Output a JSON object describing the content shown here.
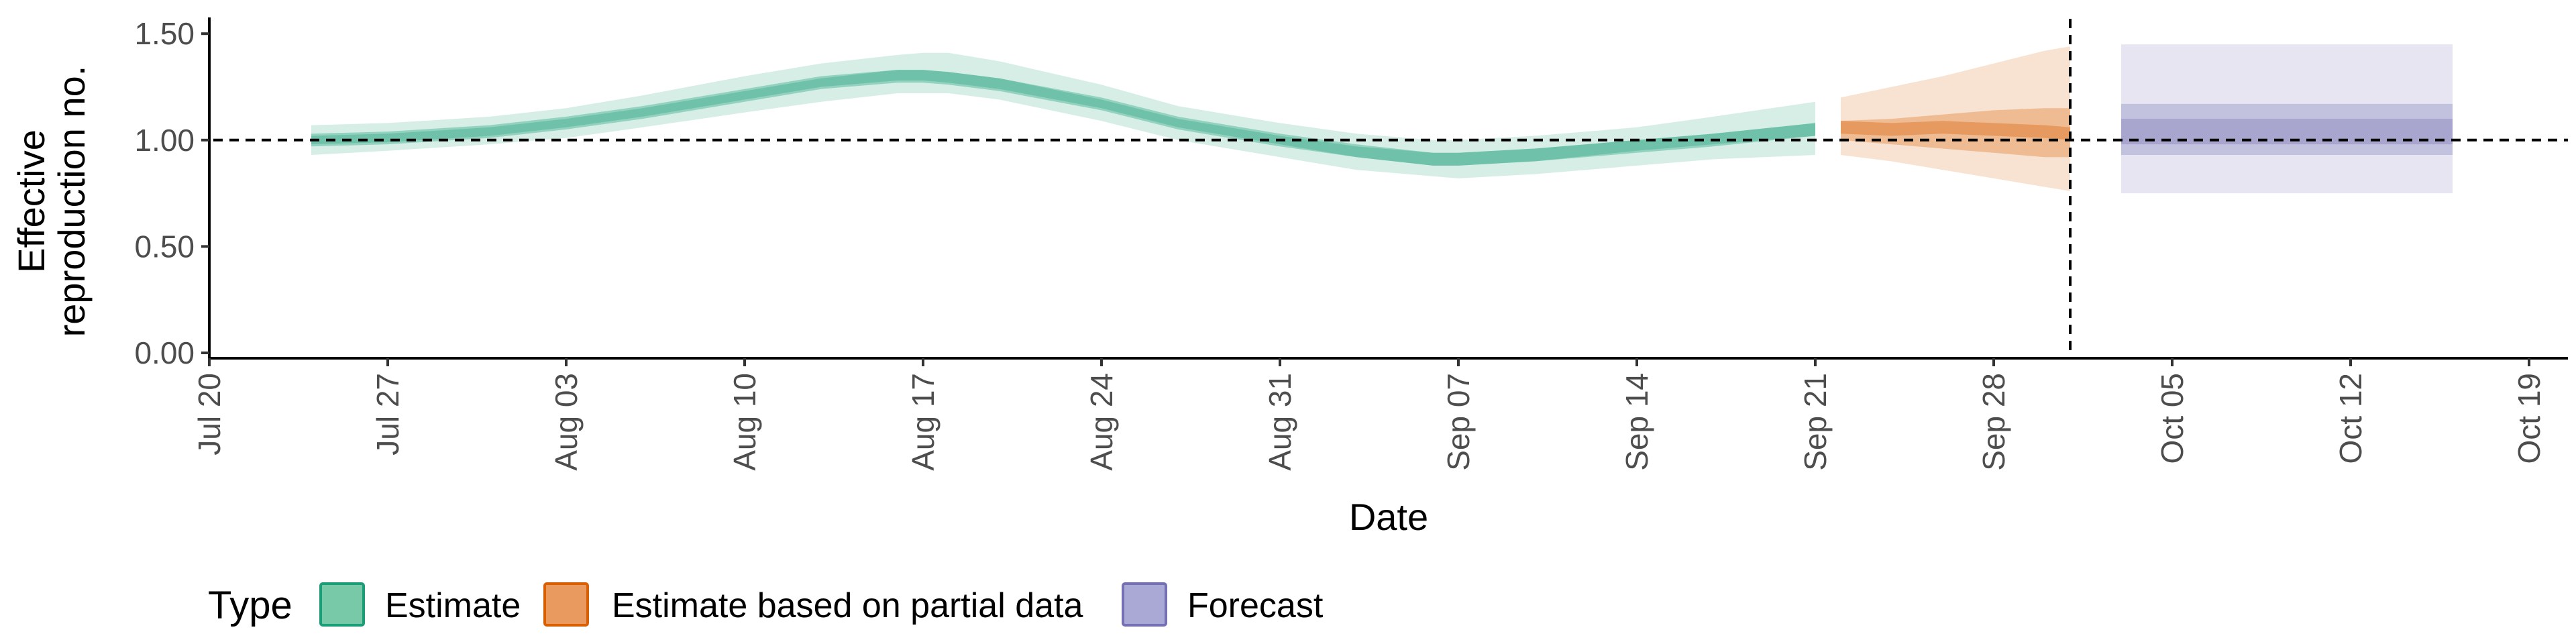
{
  "chart_data": {
    "type": "area",
    "xlabel": "Date",
    "ylabel_lines": [
      "Effective",
      "reproduction no."
    ],
    "x_ticks": [
      "Jul 20",
      "Jul 27",
      "Aug 03",
      "Aug 10",
      "Aug 17",
      "Aug 24",
      "Aug 31",
      "Sep 07",
      "Sep 14",
      "Sep 21",
      "Sep 28",
      "Oct 05",
      "Oct 12",
      "Oct 19"
    ],
    "y_ticks": [
      "0.00",
      "0.50",
      "1.00",
      "1.50"
    ],
    "ylim": [
      0,
      1.57
    ],
    "reference_line_y": 1.0,
    "forecast_date_marker": "Oct 01",
    "legend": {
      "title": "Type",
      "position": "bottom",
      "items": [
        {
          "label": "Estimate",
          "fill": "#78c9a7",
          "stroke": "#1b9e77"
        },
        {
          "label": "Estimate based on partial data",
          "fill": "#e89a5f",
          "stroke": "#d95f02"
        },
        {
          "label": "Forecast",
          "fill": "#aaa9d6",
          "stroke": "#7570b3"
        }
      ]
    },
    "colors": {
      "Estimate": "#1b9e77",
      "Estimate based on partial data": "#d95f02",
      "Forecast": "#7570b3"
    },
    "series": [
      {
        "name": "Estimate",
        "dates": [
          "2020-07-24",
          "2020-07-27",
          "2020-07-31",
          "2020-08-03",
          "2020-08-06",
          "2020-08-10",
          "2020-08-13",
          "2020-08-16",
          "2020-08-17",
          "2020-08-18",
          "2020-08-20",
          "2020-08-24",
          "2020-08-27",
          "2020-08-31",
          "2020-09-03",
          "2020-09-06",
          "2020-09-07",
          "2020-09-10",
          "2020-09-14",
          "2020-09-17",
          "2020-09-21"
        ],
        "median": [
          1.0,
          1.01,
          1.04,
          1.08,
          1.13,
          1.21,
          1.27,
          1.3,
          1.3,
          1.29,
          1.26,
          1.17,
          1.08,
          1.0,
          0.95,
          0.91,
          0.91,
          0.93,
          0.97,
          1.0,
          1.05
        ],
        "lower_50": [
          0.98,
          0.99,
          1.02,
          1.06,
          1.11,
          1.19,
          1.25,
          1.28,
          1.28,
          1.27,
          1.24,
          1.15,
          1.06,
          0.98,
          0.92,
          0.88,
          0.88,
          0.9,
          0.95,
          0.98,
          1.02
        ],
        "upper_50": [
          1.02,
          1.03,
          1.06,
          1.1,
          1.15,
          1.23,
          1.29,
          1.33,
          1.33,
          1.32,
          1.29,
          1.19,
          1.1,
          1.02,
          0.97,
          0.94,
          0.94,
          0.96,
          1.0,
          1.03,
          1.08
        ],
        "lower_90": [
          0.93,
          0.95,
          0.98,
          1.01,
          1.06,
          1.13,
          1.18,
          1.22,
          1.22,
          1.22,
          1.19,
          1.09,
          1.0,
          0.92,
          0.86,
          0.83,
          0.82,
          0.84,
          0.88,
          0.91,
          0.93
        ],
        "upper_90": [
          1.07,
          1.08,
          1.11,
          1.15,
          1.21,
          1.3,
          1.36,
          1.4,
          1.41,
          1.41,
          1.37,
          1.26,
          1.16,
          1.08,
          1.03,
          1.0,
          1.0,
          1.02,
          1.06,
          1.11,
          1.18
        ]
      },
      {
        "name": "Estimate based on partial data",
        "dates": [
          "2020-09-22",
          "2020-09-24",
          "2020-09-26",
          "2020-09-28",
          "2020-09-30",
          "2020-10-01"
        ],
        "median": [
          1.06,
          1.05,
          1.06,
          1.05,
          1.04,
          1.03
        ],
        "lower_50": [
          1.0,
          0.98,
          0.96,
          0.94,
          0.92,
          0.92
        ],
        "upper_50": [
          1.09,
          1.1,
          1.12,
          1.14,
          1.15,
          1.15
        ],
        "lower_90": [
          0.93,
          0.9,
          0.86,
          0.82,
          0.78,
          0.76
        ],
        "upper_90": [
          1.2,
          1.25,
          1.3,
          1.36,
          1.42,
          1.44
        ]
      },
      {
        "name": "Forecast",
        "dates": [
          "2020-10-03",
          "2020-10-16"
        ],
        "median": [
          1.04,
          1.04
        ],
        "lower_50": [
          0.93,
          0.93
        ],
        "upper_50": [
          1.17,
          1.17
        ],
        "lower_90": [
          0.75,
          0.75
        ],
        "upper_90": [
          1.45,
          1.45
        ]
      }
    ]
  }
}
